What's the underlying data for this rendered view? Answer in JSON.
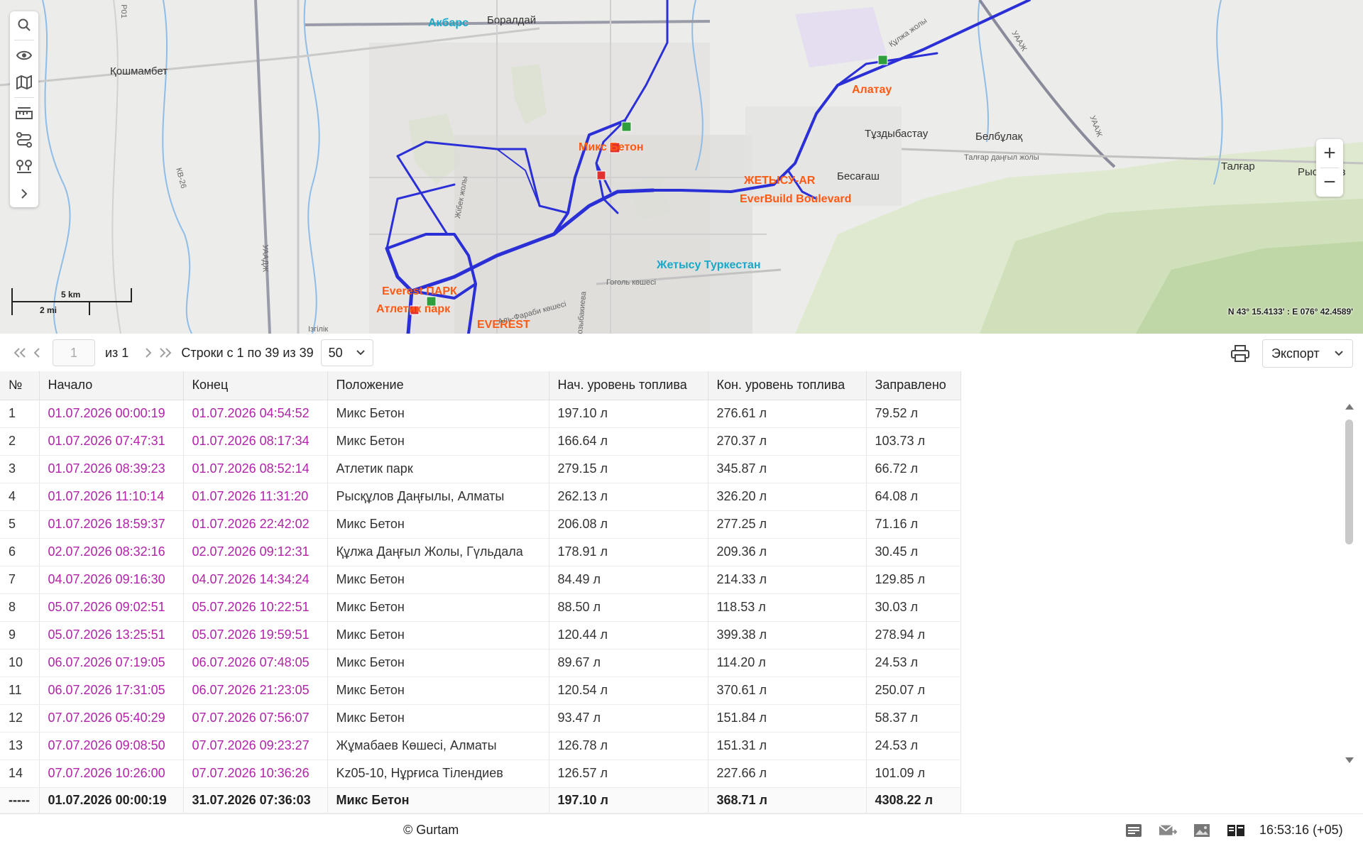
{
  "map": {
    "labels": {
      "akbars": "Акбарс",
      "boraldai": "Боралдай",
      "koshmambet": "Қошмамбет",
      "almaty_mix": "Микс Бетон",
      "alatau": "Алатау",
      "tuzdybastau": "Тұздыбастау",
      "beltulak": "Белбұлақ",
      "talgar_road": "Талғар даңғыл жолы",
      "talgar": "Талғар",
      "ryskulov": "Рыскулов",
      "besagash": "Бесағаш",
      "zhetysu_poi": "ЖЕТЫСУ-AR",
      "everbuild_poi": "EverBuild Boulevard",
      "turkestan": "Жетысу Туркестан",
      "gogol": "Гоголь көшесі",
      "everest_park": "Everest ПАРК",
      "atletik": "Атлетик парк",
      "everest": "EVEREST",
      "kv": "КВ-26",
      "shosse": "УААДЖ",
      "shosse2": "УААЖ",
      "shosse3": "УААЖ",
      "p01": "P01",
      "street1": "Жібек жолы",
      "street2": "Розыбакиева",
      "street3": "Аль-Фараби көшесі",
      "street4": "Ізгілік",
      "street5": "Құлжа жолы"
    },
    "scale_top": "5 km",
    "scale_bottom": "2 mi",
    "coords": "N 43° 15.4133' : E 076° 42.4589'",
    "zoom_in": "+",
    "zoom_out": "−"
  },
  "pagination": {
    "page": "1",
    "of": "из 1",
    "rows_info": "Строки с 1 по 39 из 39",
    "per_page": "50",
    "export": "Экспорт"
  },
  "table": {
    "headers": [
      "№",
      "Начало",
      "Конец",
      "Положение",
      "Нач. уровень топлива",
      "Кон. уровень топлива",
      "Заправлено"
    ],
    "rows": [
      [
        "1",
        "01.07.2026 00:00:19",
        "01.07.2026 04:54:52",
        "Микс Бетон",
        "197.10 л",
        "276.61 л",
        "79.52 л"
      ],
      [
        "2",
        "01.07.2026 07:47:31",
        "01.07.2026 08:17:34",
        "Микс Бетон",
        "166.64 л",
        "270.37 л",
        "103.73 л"
      ],
      [
        "3",
        "01.07.2026 08:39:23",
        "01.07.2026 08:52:14",
        "Атлетик парк",
        "279.15 л",
        "345.87 л",
        "66.72 л"
      ],
      [
        "4",
        "01.07.2026 11:10:14",
        "01.07.2026 11:31:20",
        "Рысқұлов Даңғылы, Алматы",
        "262.13 л",
        "326.20 л",
        "64.08 л"
      ],
      [
        "5",
        "01.07.2026 18:59:37",
        "01.07.2026 22:42:02",
        "Микс Бетон",
        "206.08 л",
        "277.25 л",
        "71.16 л"
      ],
      [
        "6",
        "02.07.2026 08:32:16",
        "02.07.2026 09:12:31",
        "Құлжа Даңғыл Жолы, Гүльдала",
        "178.91 л",
        "209.36 л",
        "30.45 л"
      ],
      [
        "7",
        "04.07.2026 09:16:30",
        "04.07.2026 14:34:24",
        "Микс Бетон",
        "84.49 л",
        "214.33 л",
        "129.85 л"
      ],
      [
        "8",
        "05.07.2026 09:02:51",
        "05.07.2026 10:22:51",
        "Микс Бетон",
        "88.50 л",
        "118.53 л",
        "30.03 л"
      ],
      [
        "9",
        "05.07.2026 13:25:51",
        "05.07.2026 19:59:51",
        "Микс Бетон",
        "120.44 л",
        "399.38 л",
        "278.94 л"
      ],
      [
        "10",
        "06.07.2026 07:19:05",
        "06.07.2026 07:48:05",
        "Микс Бетон",
        "89.67 л",
        "114.20 л",
        "24.53 л"
      ],
      [
        "11",
        "06.07.2026 17:31:05",
        "06.07.2026 21:23:05",
        "Микс Бетон",
        "120.54 л",
        "370.61 л",
        "250.07 л"
      ],
      [
        "12",
        "07.07.2026 05:40:29",
        "07.07.2026 07:56:07",
        "Микс Бетон",
        "93.47 л",
        "151.84 л",
        "58.37 л"
      ],
      [
        "13",
        "07.07.2026 09:08:50",
        "07.07.2026 09:23:27",
        "Жұмабаев Көшесі, Алматы",
        "126.78 л",
        "151.31 л",
        "24.53 л"
      ],
      [
        "14",
        "07.07.2026 10:26:00",
        "07.07.2026 10:36:26",
        "Kz05-10, Нұрғиса Тілендиев",
        "126.57 л",
        "227.66 л",
        "101.09 л"
      ]
    ],
    "total": [
      "-----",
      "01.07.2026 00:00:19",
      "31.07.2026 07:36:03",
      "Микс Бетон",
      "197.10 л",
      "368.71 л",
      "4308.22 л"
    ]
  },
  "footer": {
    "copyright": "© Gurtam",
    "clock": "16:53:16 (+05)"
  },
  "colors": {
    "track": "#2b2fd6",
    "time_text": "#b123a9",
    "poi": "#ff5a14",
    "teal_label": "#18a9c9"
  },
  "icons": {
    "map_tools": [
      "search-icon",
      "eye-icon",
      "map-icon",
      "ruler-icon",
      "route-icon",
      "geofence-icon",
      "chevron-right-icon"
    ],
    "footer": [
      "messages-icon",
      "mail-icon",
      "image-icon",
      "book-icon"
    ]
  }
}
